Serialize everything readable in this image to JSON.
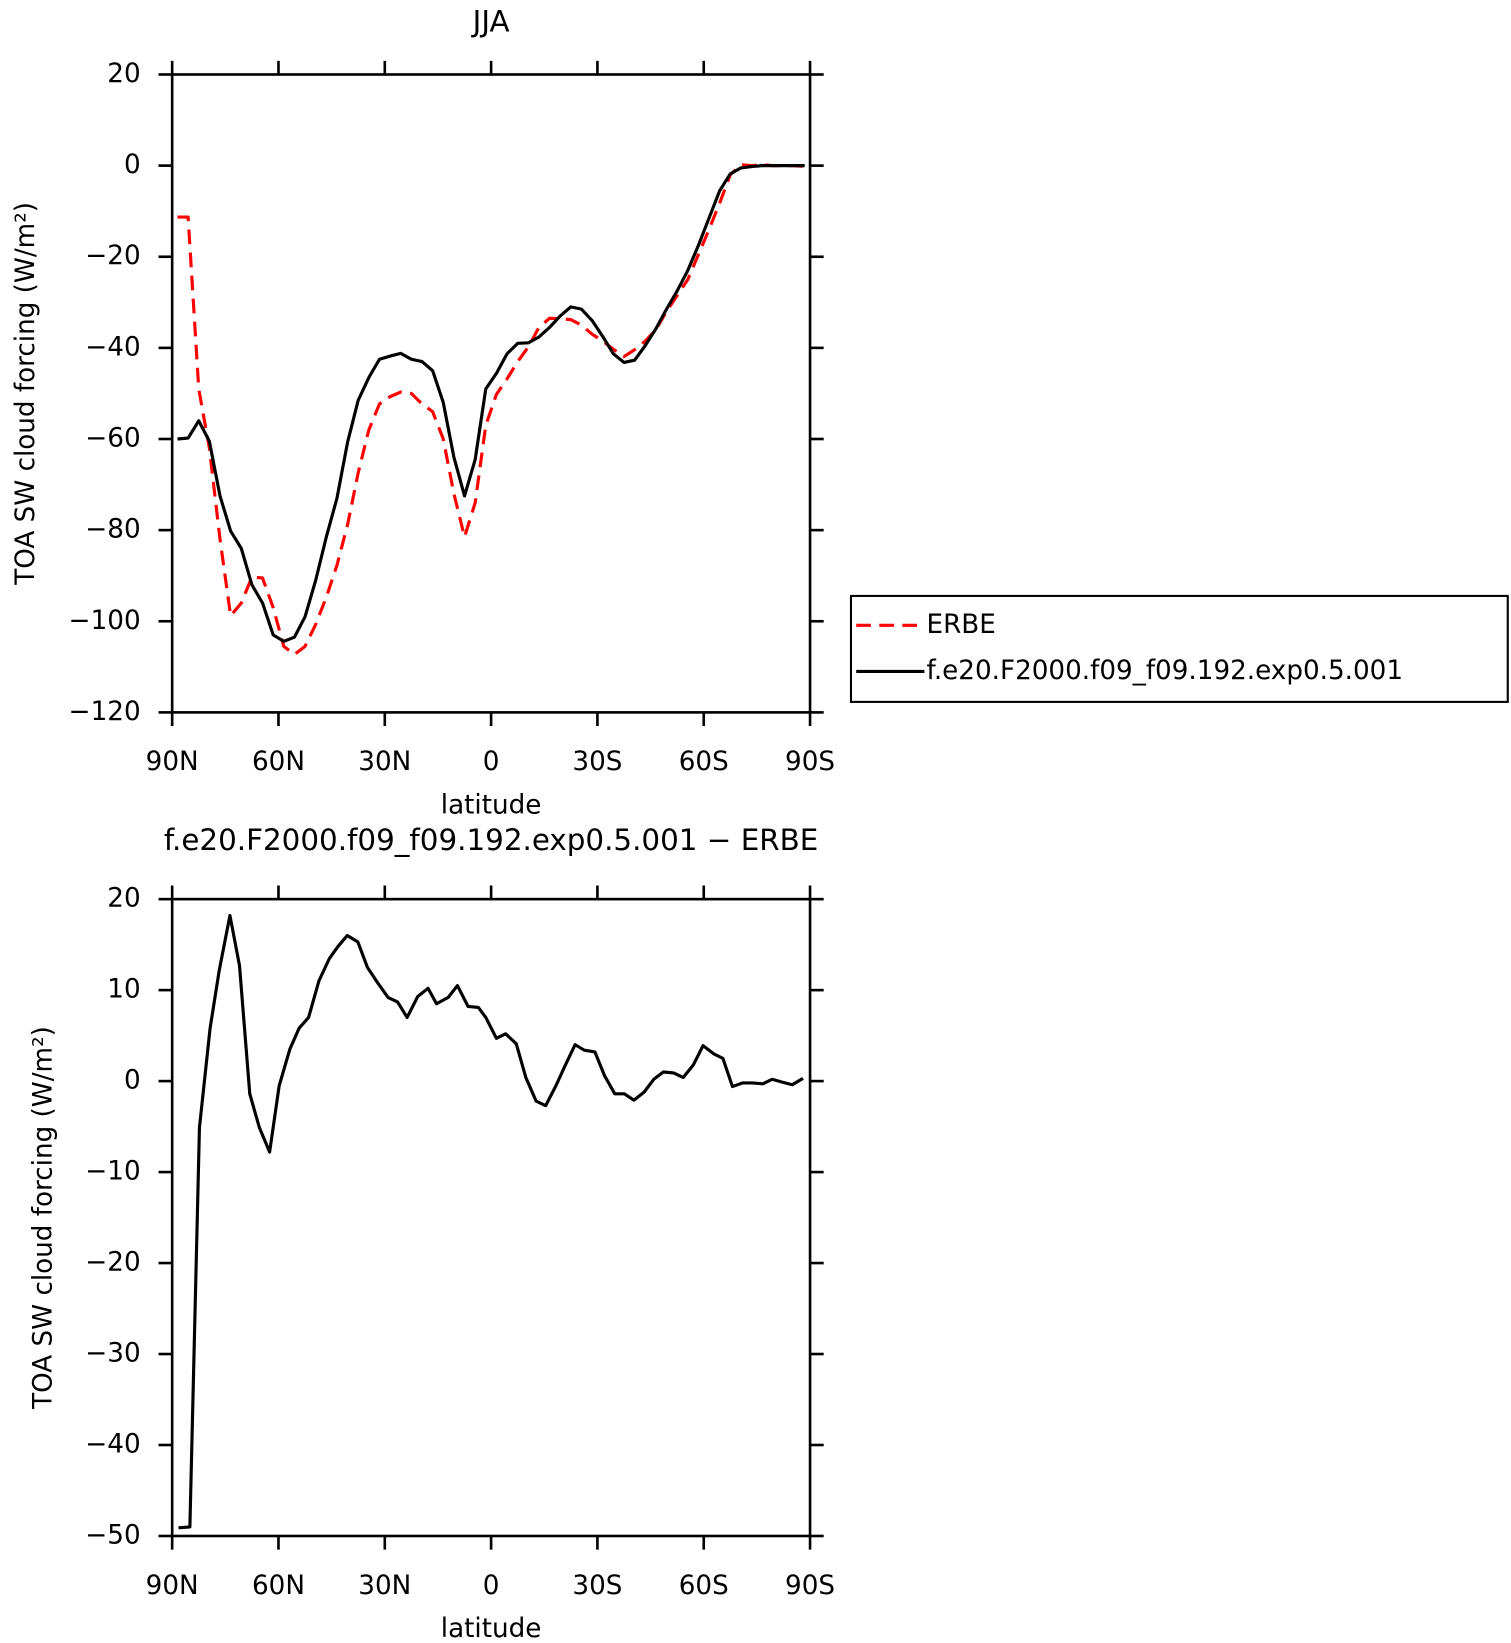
{
  "chart_data": [
    {
      "type": "line",
      "title": "JJA",
      "xlabel": "latitude",
      "ylabel": "TOA SW cloud forcing (W/m²)",
      "xlim": [
        90,
        -90
      ],
      "xticks": [
        {
          "value": 90,
          "label": "90N"
        },
        {
          "value": 60,
          "label": "60N"
        },
        {
          "value": 30,
          "label": "30N"
        },
        0,
        {
          "value": -30,
          "label": "30S"
        },
        {
          "value": -60,
          "label": "60S"
        },
        {
          "value": -90,
          "label": "90S"
        }
      ],
      "ylim": [
        -120,
        20
      ],
      "yticks": [
        {
          "value": -120,
          "label": "−120"
        },
        {
          "value": -100,
          "label": "−100"
        },
        {
          "value": -80,
          "label": "−80"
        },
        {
          "value": -60,
          "label": "−60"
        },
        {
          "value": -40,
          "label": "−40"
        },
        {
          "value": -20,
          "label": "−20"
        },
        0,
        20
      ],
      "legend": "outside-right",
      "x": [
        88.5,
        85.5,
        82.5,
        79.5,
        76.5,
        73.5,
        70.5,
        67.5,
        64.5,
        61.5,
        58.5,
        55.5,
        52.5,
        49.5,
        46.5,
        43.5,
        40.5,
        37.5,
        34.5,
        31.5,
        28.5,
        25.5,
        22.5,
        19.5,
        16.5,
        13.5,
        10.5,
        7.5,
        4.5,
        1.5,
        -1.5,
        -4.5,
        -7.5,
        -10.5,
        -13.5,
        -16.5,
        -19.5,
        -22.5,
        -25.5,
        -28.5,
        -31.5,
        -34.5,
        -37.5,
        -40.5,
        -43.5,
        -46.5,
        -49.5,
        -52.5,
        -55.5,
        -58.5,
        -61.5,
        -64.5,
        -67.5,
        -70.5,
        -73.5,
        -76.5,
        -79.5,
        -82.5,
        -85.5,
        -88.5
      ],
      "series": [
        {
          "name": "ERBE",
          "color": "#ff0000",
          "dashed": true,
          "values": [
            -11.3,
            -11.3,
            -49,
            -62,
            -82,
            -98.8,
            -96,
            -90.3,
            -90.5,
            -97,
            -105.5,
            -107.3,
            -105.5,
            -100.7,
            -94.7,
            -87.7,
            -78.8,
            -67.4,
            -58,
            -52.3,
            -50.7,
            -49.7,
            -50,
            -52.3,
            -54,
            -60,
            -72,
            -81.5,
            -74,
            -57,
            -50.2,
            -46.8,
            -43,
            -39.8,
            -35.5,
            -33.5,
            -33.6,
            -33.8,
            -35,
            -37,
            -38.5,
            -40.3,
            -41.9,
            -40.4,
            -38.5,
            -36,
            -32,
            -28.5,
            -25,
            -19.5,
            -14,
            -8.2,
            -2,
            0.2,
            0,
            0.2,
            0,
            0,
            0,
            -0.2
          ]
        },
        {
          "name": "f.e20.F2000.f09_f09.192.exp0.5.001",
          "color": "#000000",
          "dashed": false,
          "values": [
            -60,
            -59.8,
            -56,
            -60.5,
            -72.5,
            -80.2,
            -84,
            -92,
            -96,
            -103,
            -104.4,
            -103.5,
            -99,
            -91,
            -81.5,
            -73,
            -60.7,
            -51.5,
            -46.5,
            -42.5,
            -41.8,
            -41.2,
            -42.5,
            -43,
            -45,
            -52,
            -64,
            -72.5,
            -64.5,
            -49,
            -45.6,
            -41.3,
            -39,
            -38.9,
            -37.6,
            -35.5,
            -33,
            -31,
            -31.5,
            -34,
            -37.5,
            -41.3,
            -43.2,
            -42.7,
            -39.5,
            -35.8,
            -31.5,
            -27.5,
            -23,
            -17.5,
            -11.5,
            -5.5,
            -1.8,
            -0.5,
            -0.2,
            0,
            0,
            0,
            0,
            0
          ]
        }
      ]
    },
    {
      "type": "line",
      "title": "f.e20.F2000.f09_f09.192.exp0.5.001 − ERBE",
      "xlabel": "latitude",
      "ylabel": "TOA SW cloud forcing (W/m²)",
      "xlim": [
        90,
        -90
      ],
      "xticks": [
        {
          "value": 90,
          "label": "90N"
        },
        {
          "value": 60,
          "label": "60N"
        },
        {
          "value": 30,
          "label": "30N"
        },
        0,
        {
          "value": -30,
          "label": "30S"
        },
        {
          "value": -60,
          "label": "60S"
        },
        {
          "value": -90,
          "label": "90S"
        }
      ],
      "ylim": [
        -50,
        20
      ],
      "yticks": [
        {
          "value": -50,
          "label": "−50"
        },
        {
          "value": -40,
          "label": "−40"
        },
        {
          "value": -30,
          "label": "−30"
        },
        {
          "value": -20,
          "label": "−20"
        },
        {
          "value": -10,
          "label": "−10"
        },
        0,
        10,
        20
      ],
      "x": [
        88.2,
        85,
        82.3,
        79.3,
        76.7,
        73.7,
        71,
        68.1,
        65.4,
        62.5,
        59.8,
        56.8,
        54.2,
        51.5,
        48.6,
        45.6,
        43.2,
        40.6,
        37.6,
        34.9,
        32,
        29.1,
        26.4,
        23.7,
        20.7,
        17.8,
        15.4,
        12.1,
        9.5,
        6.5,
        3.6,
        1.5,
        -1.5,
        -4.1,
        -7.1,
        -9.8,
        -12.7,
        -15.4,
        -18.3,
        -21,
        -23.7,
        -26.3,
        -29.3,
        -32,
        -34.9,
        -37.6,
        -40.3,
        -43.2,
        -45.9,
        -48.6,
        -51.5,
        -54.2,
        -57.1,
        -59.8,
        -62.8,
        -65.4,
        -68.1,
        -71,
        -73.7,
        -76.7,
        -79.3,
        -82,
        -85,
        -88
      ],
      "series": [
        {
          "color": "#000000",
          "dashed": false,
          "values": [
            -49.1,
            -49,
            -5.1,
            5.8,
            12.2,
            18.2,
            12.7,
            -1.4,
            -5.1,
            -7.8,
            -0.5,
            3.5,
            5.8,
            7,
            11,
            13.5,
            14.8,
            16,
            15.3,
            12.5,
            10.8,
            9.2,
            8.7,
            7,
            9.3,
            10.2,
            8.5,
            9.2,
            10.5,
            8.2,
            8.1,
            7,
            4.7,
            5.2,
            4.1,
            0.4,
            -2.2,
            -2.7,
            -0.5,
            1.8,
            4,
            3.4,
            3.2,
            0.6,
            -1.4,
            -1.4,
            -2.1,
            -1.2,
            0.2,
            1,
            0.9,
            0.4,
            1.8,
            3.9,
            3,
            2.5,
            -0.6,
            -0.2,
            -0.2,
            -0.3,
            0.2,
            -0.1,
            -0.4,
            0.3
          ]
        }
      ]
    }
  ]
}
